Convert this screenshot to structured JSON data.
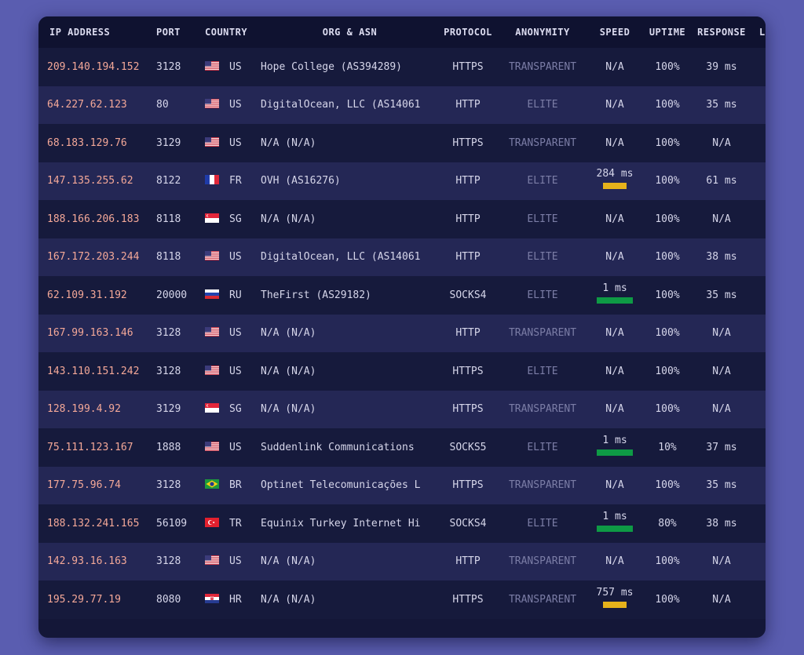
{
  "columns": {
    "ip": "IP ADDRESS",
    "port": "PORT",
    "country": "COUNTRY",
    "org": "ORG & ASN",
    "protocol": "PROTOCOL",
    "anonymity": "ANONYMITY",
    "speed": "SPEED",
    "uptime": "UPTIME",
    "response": "RESPONSE",
    "extra": "L"
  },
  "rows": [
    {
      "ip": "209.140.194.152",
      "port": "3128",
      "flag": "us-flag-icon",
      "country": "US",
      "org": "Hope College (AS394289)",
      "protocol": "HTTPS",
      "anonymity": "TRANSPARENT",
      "speed": "N/A",
      "uptime": "100%",
      "response": "39 ms"
    },
    {
      "ip": "64.227.62.123",
      "port": "80",
      "flag": "us-flag-icon",
      "country": "US",
      "org": "DigitalOcean, LLC (AS14061",
      "protocol": "HTTP",
      "anonymity": "ELITE",
      "speed": "N/A",
      "uptime": "100%",
      "response": "35 ms"
    },
    {
      "ip": "68.183.129.76",
      "port": "3129",
      "flag": "us-flag-icon",
      "country": "US",
      "org": "N/A (N/A)",
      "protocol": "HTTPS",
      "anonymity": "TRANSPARENT",
      "speed": "N/A",
      "uptime": "100%",
      "response": "N/A"
    },
    {
      "ip": "147.135.255.62",
      "port": "8122",
      "flag": "fr-flag-icon",
      "country": "FR",
      "org": "OVH (AS16276)",
      "protocol": "HTTP",
      "anonymity": "ELITE",
      "speed": "284 ms",
      "speed_bar": {
        "level": 0.64,
        "color": "#e6b21b"
      },
      "uptime": "100%",
      "response": "61 ms"
    },
    {
      "ip": "188.166.206.183",
      "port": "8118",
      "flag": "sg-flag-icon",
      "country": "SG",
      "org": "N/A (N/A)",
      "protocol": "HTTP",
      "anonymity": "ELITE",
      "speed": "N/A",
      "uptime": "100%",
      "response": "N/A"
    },
    {
      "ip": "167.172.203.244",
      "port": "8118",
      "flag": "us-flag-icon",
      "country": "US",
      "org": "DigitalOcean, LLC (AS14061",
      "protocol": "HTTP",
      "anonymity": "ELITE",
      "speed": "N/A",
      "uptime": "100%",
      "response": "38 ms"
    },
    {
      "ip": "62.109.31.192",
      "port": "20000",
      "flag": "ru-flag-icon",
      "country": "RU",
      "org": "TheFirst (AS29182)",
      "protocol": "SOCKS4",
      "anonymity": "ELITE",
      "speed": "1 ms",
      "speed_bar": {
        "level": 1.0,
        "color": "#0e9a45"
      },
      "uptime": "100%",
      "response": "35 ms"
    },
    {
      "ip": "167.99.163.146",
      "port": "3128",
      "flag": "us-flag-icon",
      "country": "US",
      "org": "N/A (N/A)",
      "protocol": "HTTP",
      "anonymity": "TRANSPARENT",
      "speed": "N/A",
      "uptime": "100%",
      "response": "N/A"
    },
    {
      "ip": "143.110.151.242",
      "port": "3128",
      "flag": "us-flag-icon",
      "country": "US",
      "org": "N/A (N/A)",
      "protocol": "HTTPS",
      "anonymity": "ELITE",
      "speed": "N/A",
      "uptime": "100%",
      "response": "N/A"
    },
    {
      "ip": "128.199.4.92",
      "port": "3129",
      "flag": "sg-flag-icon",
      "country": "SG",
      "org": "N/A (N/A)",
      "protocol": "HTTPS",
      "anonymity": "TRANSPARENT",
      "speed": "N/A",
      "uptime": "100%",
      "response": "N/A"
    },
    {
      "ip": "75.111.123.167",
      "port": "1888",
      "flag": "us-flag-icon",
      "country": "US",
      "org": "Suddenlink Communications",
      "protocol": "SOCKS5",
      "anonymity": "ELITE",
      "speed": "1 ms",
      "speed_bar": {
        "level": 1.0,
        "color": "#0e9a45"
      },
      "uptime": "10%",
      "response": "37 ms"
    },
    {
      "ip": "177.75.96.74",
      "port": "3128",
      "flag": "br-flag-icon",
      "country": "BR",
      "org": "Optinet Telecomunicações L",
      "protocol": "HTTPS",
      "anonymity": "TRANSPARENT",
      "speed": "N/A",
      "uptime": "100%",
      "response": "35 ms"
    },
    {
      "ip": "188.132.241.165",
      "port": "56109",
      "flag": "tr-flag-icon",
      "country": "TR",
      "org": "Equinix Turkey Internet Hi",
      "protocol": "SOCKS4",
      "anonymity": "ELITE",
      "speed": "1 ms",
      "speed_bar": {
        "level": 1.0,
        "color": "#0e9a45"
      },
      "uptime": "80%",
      "response": "38 ms"
    },
    {
      "ip": "142.93.16.163",
      "port": "3128",
      "flag": "us-flag-icon",
      "country": "US",
      "org": "N/A (N/A)",
      "protocol": "HTTP",
      "anonymity": "TRANSPARENT",
      "speed": "N/A",
      "uptime": "100%",
      "response": "N/A"
    },
    {
      "ip": "195.29.77.19",
      "port": "8080",
      "flag": "hr-flag-icon",
      "country": "HR",
      "org": "N/A (N/A)",
      "protocol": "HTTPS",
      "anonymity": "TRANSPARENT",
      "speed": "757 ms",
      "speed_bar": {
        "level": 0.64,
        "color": "#e6b21b"
      },
      "uptime": "100%",
      "response": "N/A"
    }
  ]
}
